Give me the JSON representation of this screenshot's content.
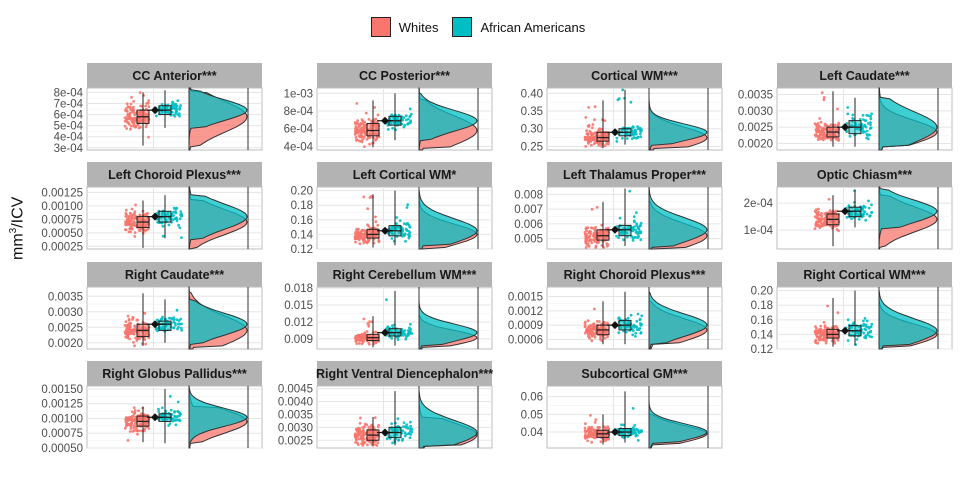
{
  "legend": {
    "items": [
      {
        "label": "Whites",
        "color": "#F8766D"
      },
      {
        "label": "African Americans",
        "color": "#00BFC4"
      }
    ]
  },
  "axis": {
    "ylabel_main": "mm",
    "ylabel_sup": "3",
    "ylabel_rest": "/ICV"
  },
  "chart_data": [
    {
      "type": "scatter",
      "title": "CC Anterior***",
      "yticks": [
        "3e-04",
        "4e-04",
        "5e-04",
        "6e-04",
        "7e-04",
        "8e-04"
      ],
      "tick_values": [
        0.0003,
        0.0004,
        0.0005,
        0.0006,
        0.0007,
        0.0008
      ],
      "ylim": [
        0.00028,
        0.00084
      ],
      "series": [
        {
          "name": "Whites",
          "median": 0.00058,
          "q1": 0.00052,
          "q3": 0.00064,
          "min": 0.00032,
          "max": 0.0008
        },
        {
          "name": "African Americans",
          "median": 0.00064,
          "q1": 0.0006,
          "q3": 0.00068,
          "min": 0.00048,
          "max": 0.00082
        }
      ]
    },
    {
      "type": "scatter",
      "title": "CC Posterior***",
      "yticks": [
        "4e-04",
        "6e-04",
        "8e-04",
        "1e-03"
      ],
      "tick_values": [
        0.0004,
        0.0006,
        0.0008,
        0.001
      ],
      "ylim": [
        0.00036,
        0.00106
      ],
      "series": [
        {
          "name": "Whites",
          "median": 0.00058,
          "q1": 0.00052,
          "q3": 0.00066,
          "min": 0.00039,
          "max": 0.00092
        },
        {
          "name": "African Americans",
          "median": 0.00069,
          "q1": 0.00064,
          "q3": 0.00074,
          "min": 0.00047,
          "max": 0.001
        }
      ]
    },
    {
      "type": "scatter",
      "title": "Cortical WM***",
      "yticks": [
        "0.25",
        "0.30",
        "0.35",
        "0.40"
      ],
      "tick_values": [
        0.25,
        0.3,
        0.35,
        0.4
      ],
      "ylim": [
        0.24,
        0.415
      ],
      "series": [
        {
          "name": "Whites",
          "median": 0.275,
          "q1": 0.265,
          "q3": 0.29,
          "min": 0.245,
          "max": 0.38
        },
        {
          "name": "African Americans",
          "median": 0.29,
          "q1": 0.28,
          "q3": 0.3,
          "min": 0.255,
          "max": 0.41
        }
      ]
    },
    {
      "type": "scatter",
      "title": "Left Caudate***",
      "yticks": [
        "0.0020",
        "0.0025",
        "0.0030",
        "0.0035"
      ],
      "tick_values": [
        0.002,
        0.0025,
        0.003,
        0.0035
      ],
      "ylim": [
        0.0018,
        0.0037
      ],
      "series": [
        {
          "name": "Whites",
          "median": 0.00235,
          "q1": 0.0022,
          "q3": 0.0025,
          "min": 0.0019,
          "max": 0.0036
        },
        {
          "name": "African Americans",
          "median": 0.0025,
          "q1": 0.0023,
          "q3": 0.0027,
          "min": 0.0019,
          "max": 0.0034
        }
      ]
    },
    {
      "type": "scatter",
      "title": "Left Choroid Plexus***",
      "yticks": [
        "0.00025",
        "0.00050",
        "0.00075",
        "0.00100",
        "0.00125"
      ],
      "tick_values": [
        0.00025,
        0.0005,
        0.00075,
        0.001,
        0.00125
      ],
      "ylim": [
        0.0002,
        0.00135
      ],
      "series": [
        {
          "name": "Whites",
          "median": 0.0007,
          "q1": 0.0006,
          "q3": 0.0008,
          "min": 0.00022,
          "max": 0.0011
        },
        {
          "name": "African Americans",
          "median": 0.0008,
          "q1": 0.0007,
          "q3": 0.0009,
          "min": 0.0004,
          "max": 0.0012
        }
      ]
    },
    {
      "type": "scatter",
      "title": "Left Cortical WM*",
      "yticks": [
        "0.12",
        "0.14",
        "0.16",
        "0.18",
        "0.20"
      ],
      "tick_values": [
        0.12,
        0.14,
        0.16,
        0.18,
        0.2
      ],
      "ylim": [
        0.12,
        0.205
      ],
      "series": [
        {
          "name": "Whites",
          "median": 0.14,
          "q1": 0.135,
          "q3": 0.147,
          "min": 0.122,
          "max": 0.195
        },
        {
          "name": "African Americans",
          "median": 0.145,
          "q1": 0.138,
          "q3": 0.152,
          "min": 0.125,
          "max": 0.2
        }
      ]
    },
    {
      "type": "scatter",
      "title": "Left Thalamus Proper***",
      "yticks": [
        "0.005",
        "0.006",
        "0.007",
        "0.008"
      ],
      "tick_values": [
        0.005,
        0.006,
        0.007,
        0.008
      ],
      "ylim": [
        0.0043,
        0.0085
      ],
      "series": [
        {
          "name": "Whites",
          "median": 0.0052,
          "q1": 0.0049,
          "q3": 0.0056,
          "min": 0.0044,
          "max": 0.0075
        },
        {
          "name": "African Americans",
          "median": 0.0056,
          "q1": 0.0052,
          "q3": 0.0059,
          "min": 0.0045,
          "max": 0.0084
        }
      ]
    },
    {
      "type": "scatter",
      "title": "Optic Chiasm***",
      "yticks": [
        "1e-04",
        "2e-04"
      ],
      "tick_values": [
        0.0001,
        0.0002
      ],
      "ylim": [
        3e-05,
        0.00026
      ],
      "series": [
        {
          "name": "Whites",
          "median": 0.00014,
          "q1": 0.00012,
          "q3": 0.00016,
          "min": 4e-05,
          "max": 0.00023
        },
        {
          "name": "African Americans",
          "median": 0.00017,
          "q1": 0.00015,
          "q3": 0.000185,
          "min": 0.00011,
          "max": 0.00025
        }
      ]
    },
    {
      "type": "scatter",
      "title": "Right Caudate***",
      "yticks": [
        "0.0020",
        "0.0025",
        "0.0030",
        "0.0035"
      ],
      "tick_values": [
        0.002,
        0.0025,
        0.003,
        0.0035
      ],
      "ylim": [
        0.0018,
        0.0038
      ],
      "series": [
        {
          "name": "Whites",
          "median": 0.0024,
          "q1": 0.0022,
          "q3": 0.0026,
          "min": 0.0019,
          "max": 0.0036
        },
        {
          "name": "African Americans",
          "median": 0.0026,
          "q1": 0.0024,
          "q3": 0.0027,
          "min": 0.002,
          "max": 0.0034
        }
      ]
    },
    {
      "type": "scatter",
      "title": "Right Cerebellum WM***",
      "yticks": [
        "0.009",
        "0.012",
        "0.015",
        "0.018"
      ],
      "tick_values": [
        0.009,
        0.012,
        0.015,
        0.018
      ],
      "ylim": [
        0.0072,
        0.0182
      ],
      "series": [
        {
          "name": "Whites",
          "median": 0.0092,
          "q1": 0.0087,
          "q3": 0.0098,
          "min": 0.0075,
          "max": 0.013
        },
        {
          "name": "African Americans",
          "median": 0.0101,
          "q1": 0.0095,
          "q3": 0.0108,
          "min": 0.0078,
          "max": 0.0175
        }
      ]
    },
    {
      "type": "scatter",
      "title": "Right Choroid Plexus***",
      "yticks": [
        "0.0006",
        "0.0009",
        "0.0012",
        "0.0015"
      ],
      "tick_values": [
        0.0006,
        0.0009,
        0.0012,
        0.0015
      ],
      "ylim": [
        0.0004,
        0.0017
      ],
      "series": [
        {
          "name": "Whites",
          "median": 0.0008,
          "q1": 0.0007,
          "q3": 0.0009,
          "min": 0.0005,
          "max": 0.0014
        },
        {
          "name": "African Americans",
          "median": 0.0009,
          "q1": 0.0008,
          "q3": 0.001,
          "min": 0.0005,
          "max": 0.0016
        }
      ]
    },
    {
      "type": "scatter",
      "title": "Right Cortical WM***",
      "yticks": [
        "0.12",
        "0.14",
        "0.16",
        "0.18",
        "0.20"
      ],
      "tick_values": [
        0.12,
        0.14,
        0.16,
        0.18,
        0.2
      ],
      "ylim": [
        0.12,
        0.205
      ],
      "series": [
        {
          "name": "Whites",
          "median": 0.14,
          "q1": 0.135,
          "q3": 0.147,
          "min": 0.123,
          "max": 0.19
        },
        {
          "name": "African Americans",
          "median": 0.145,
          "q1": 0.138,
          "q3": 0.152,
          "min": 0.125,
          "max": 0.2
        }
      ]
    },
    {
      "type": "scatter",
      "title": "Right Globus Pallidus***",
      "yticks": [
        "0.00050",
        "0.00075",
        "0.00100",
        "0.00125",
        "0.00150"
      ],
      "tick_values": [
        0.0005,
        0.00075,
        0.001,
        0.00125,
        0.0015
      ],
      "ylim": [
        0.0005,
        0.00155
      ],
      "series": [
        {
          "name": "Whites",
          "median": 0.00095,
          "q1": 0.00087,
          "q3": 0.00104,
          "min": 0.0006,
          "max": 0.0012
        },
        {
          "name": "African Americans",
          "median": 0.00102,
          "q1": 0.00095,
          "q3": 0.00108,
          "min": 0.00058,
          "max": 0.0015
        }
      ]
    },
    {
      "type": "scatter",
      "title": "Right Ventral Diencephalon***",
      "yticks": [
        "0.0025",
        "0.0030",
        "0.0035",
        "0.0040",
        "0.0045"
      ],
      "tick_values": [
        0.0025,
        0.003,
        0.0035,
        0.004,
        0.0045
      ],
      "ylim": [
        0.0022,
        0.0046
      ],
      "series": [
        {
          "name": "Whites",
          "median": 0.0027,
          "q1": 0.0025,
          "q3": 0.0029,
          "min": 0.0023,
          "max": 0.0034
        },
        {
          "name": "African Americans",
          "median": 0.0028,
          "q1": 0.0026,
          "q3": 0.003,
          "min": 0.0023,
          "max": 0.0044
        }
      ]
    },
    {
      "type": "scatter",
      "title": "Subcortical GM***",
      "yticks": [
        "0.04",
        "0.05",
        "0.06"
      ],
      "tick_values": [
        0.04,
        0.05,
        0.06
      ],
      "ylim": [
        0.031,
        0.066
      ],
      "series": [
        {
          "name": "Whites",
          "median": 0.039,
          "q1": 0.037,
          "q3": 0.041,
          "min": 0.033,
          "max": 0.05
        },
        {
          "name": "African Americans",
          "median": 0.04,
          "q1": 0.038,
          "q3": 0.042,
          "min": 0.034,
          "max": 0.063
        }
      ]
    }
  ]
}
